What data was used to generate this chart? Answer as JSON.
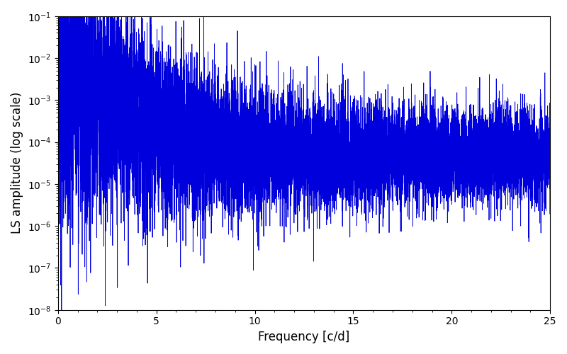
{
  "title": "",
  "xlabel": "Frequency [c/d]",
  "ylabel": "LS amplitude (log scale)",
  "xlim": [
    0,
    25
  ],
  "ylim": [
    1e-08,
    0.1
  ],
  "line_color": "#0000dd",
  "line_width": 0.6,
  "background_color": "#ffffff",
  "seed": 17,
  "n_points": 12000,
  "freq_max": 25.0
}
